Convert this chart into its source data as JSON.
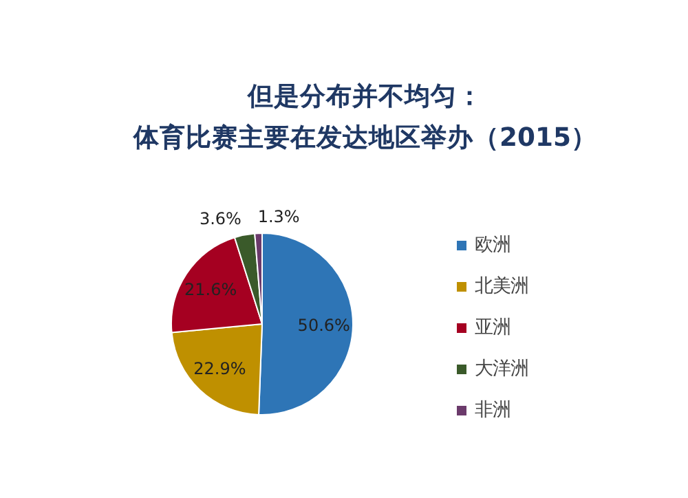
{
  "chart_data": {
    "type": "pie",
    "title": "但是分布并不均匀：",
    "subtitle": "体育比赛主要在发达地区举办（2015）",
    "categories": [
      "欧洲",
      "北美洲",
      "亚洲",
      "大洋洲",
      "非洲"
    ],
    "values": [
      50.6,
      22.9,
      21.6,
      3.6,
      1.3
    ],
    "colors": [
      "#2e75b6",
      "#bf9000",
      "#a50021",
      "#3a5a2a",
      "#6b3a6b"
    ],
    "value_labels": [
      "50.6%",
      "22.9%",
      "21.6%",
      "3.6%",
      "1.3%"
    ],
    "legend": "right"
  }
}
